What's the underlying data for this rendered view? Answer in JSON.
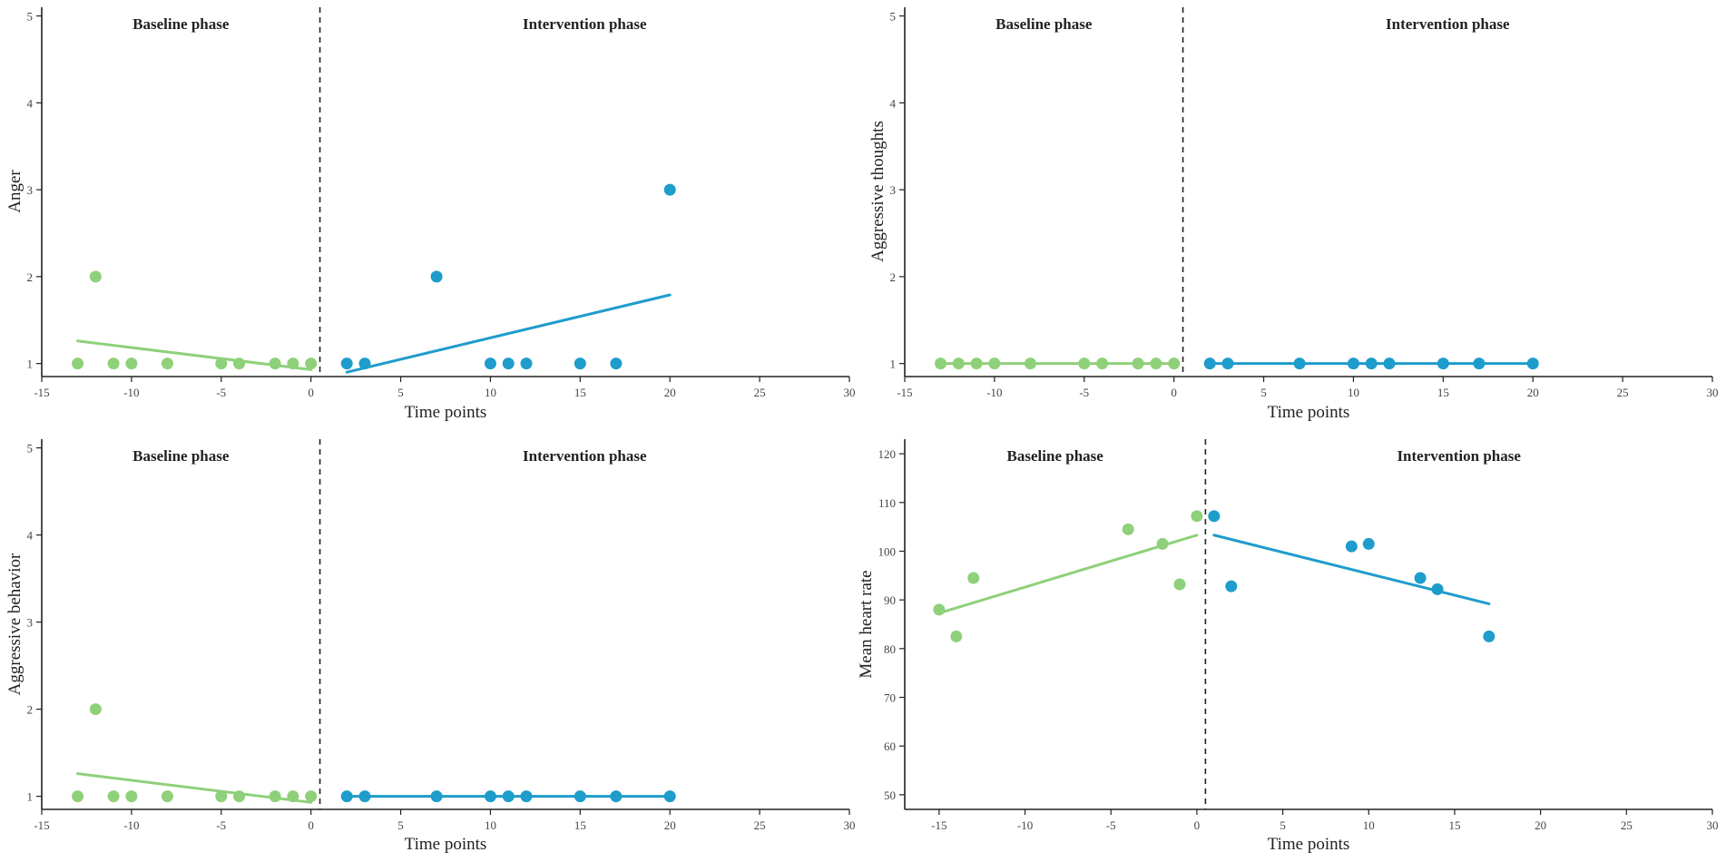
{
  "colors": {
    "baseline": "#8fd07a",
    "intervention": "#1e9ccc"
  },
  "chart_data": [
    {
      "type": "scatter",
      "ylabel": "Anger",
      "xlabel": "Time points",
      "xlim": [
        -15,
        30
      ],
      "xticks": [
        -15,
        -10,
        -5,
        0,
        5,
        10,
        15,
        20,
        25,
        30
      ],
      "ylim": [
        0.85,
        5.1
      ],
      "yticks": [
        1,
        2,
        3,
        4,
        5
      ],
      "phase_boundary": 0.5,
      "phases": [
        {
          "name": "Baseline phase",
          "points": [
            [
              -13,
              1
            ],
            [
              -12,
              2
            ],
            [
              -11,
              1
            ],
            [
              -10,
              1
            ],
            [
              -8,
              1
            ],
            [
              -5,
              1
            ],
            [
              -4,
              1
            ],
            [
              -2,
              1
            ],
            [
              -1,
              1
            ],
            [
              0,
              1
            ]
          ],
          "trend": [
            [
              -13,
              1.26
            ],
            [
              0,
              0.93
            ]
          ]
        },
        {
          "name": "Intervention phase",
          "points": [
            [
              2,
              1
            ],
            [
              3,
              1
            ],
            [
              7,
              2
            ],
            [
              10,
              1
            ],
            [
              11,
              1
            ],
            [
              12,
              1
            ],
            [
              15,
              1
            ],
            [
              17,
              1
            ],
            [
              20,
              3
            ]
          ],
          "trend": [
            [
              2,
              0.9
            ],
            [
              20,
              1.79
            ]
          ]
        }
      ]
    },
    {
      "type": "scatter",
      "ylabel": "Aggressive thoughts",
      "xlabel": "Time points",
      "xlim": [
        -15,
        30
      ],
      "xticks": [
        -15,
        -10,
        -5,
        0,
        5,
        10,
        15,
        20,
        25,
        30
      ],
      "ylim": [
        0.85,
        5.1
      ],
      "yticks": [
        1,
        2,
        3,
        4,
        5
      ],
      "phase_boundary": 0.5,
      "phases": [
        {
          "name": "Baseline phase",
          "points": [
            [
              -13,
              1
            ],
            [
              -12,
              1
            ],
            [
              -11,
              1
            ],
            [
              -10,
              1
            ],
            [
              -8,
              1
            ],
            [
              -5,
              1
            ],
            [
              -4,
              1
            ],
            [
              -2,
              1
            ],
            [
              -1,
              1
            ],
            [
              0,
              1
            ]
          ],
          "trend": [
            [
              -13,
              1
            ],
            [
              0,
              1
            ]
          ]
        },
        {
          "name": "Intervention phase",
          "points": [
            [
              2,
              1
            ],
            [
              3,
              1
            ],
            [
              7,
              1
            ],
            [
              10,
              1
            ],
            [
              11,
              1
            ],
            [
              12,
              1
            ],
            [
              15,
              1
            ],
            [
              17,
              1
            ],
            [
              20,
              1
            ]
          ],
          "trend": [
            [
              2,
              1
            ],
            [
              20,
              1
            ]
          ]
        }
      ]
    },
    {
      "type": "scatter",
      "ylabel": "Aggressive behavior",
      "xlabel": "Time points",
      "xlim": [
        -15,
        30
      ],
      "xticks": [
        -15,
        -10,
        -5,
        0,
        5,
        10,
        15,
        20,
        25,
        30
      ],
      "ylim": [
        0.85,
        5.1
      ],
      "yticks": [
        1,
        2,
        3,
        4,
        5
      ],
      "phase_boundary": 0.5,
      "phases": [
        {
          "name": "Baseline phase",
          "points": [
            [
              -13,
              1
            ],
            [
              -12,
              2
            ],
            [
              -11,
              1
            ],
            [
              -10,
              1
            ],
            [
              -8,
              1
            ],
            [
              -5,
              1
            ],
            [
              -4,
              1
            ],
            [
              -2,
              1
            ],
            [
              -1,
              1
            ],
            [
              0,
              1
            ]
          ],
          "trend": [
            [
              -13,
              1.26
            ],
            [
              0,
              0.93
            ]
          ]
        },
        {
          "name": "Intervention phase",
          "points": [
            [
              2,
              1
            ],
            [
              3,
              1
            ],
            [
              7,
              1
            ],
            [
              10,
              1
            ],
            [
              11,
              1
            ],
            [
              12,
              1
            ],
            [
              15,
              1
            ],
            [
              17,
              1
            ],
            [
              20,
              1
            ]
          ],
          "trend": [
            [
              2,
              1
            ],
            [
              20,
              1
            ]
          ]
        }
      ]
    },
    {
      "type": "scatter",
      "ylabel": "Mean heart rate",
      "xlabel": "Time points",
      "xlim": [
        -17,
        30
      ],
      "xticks": [
        -15,
        -10,
        -5,
        0,
        5,
        10,
        15,
        20,
        25,
        30
      ],
      "ylim": [
        47,
        123
      ],
      "yticks": [
        50,
        60,
        70,
        80,
        90,
        100,
        110,
        120
      ],
      "phase_boundary": 0.5,
      "phases": [
        {
          "name": "Baseline phase",
          "points": [
            [
              -15,
              88
            ],
            [
              -14,
              82.5
            ],
            [
              -13,
              94.5
            ],
            [
              -4,
              104.5
            ],
            [
              -2,
              101.5
            ],
            [
              -1,
              93.2
            ],
            [
              0,
              107.2
            ]
          ],
          "trend": [
            [
              -15,
              87.3
            ],
            [
              0,
              103.3
            ]
          ]
        },
        {
          "name": "Intervention phase",
          "points": [
            [
              1,
              107.2
            ],
            [
              2,
              92.8
            ],
            [
              9,
              101
            ],
            [
              10,
              101.5
            ],
            [
              13,
              94.5
            ],
            [
              14,
              92.2
            ],
            [
              17,
              82.5
            ]
          ],
          "trend": [
            [
              1,
              103.3
            ],
            [
              17,
              89.2
            ]
          ]
        }
      ]
    }
  ]
}
